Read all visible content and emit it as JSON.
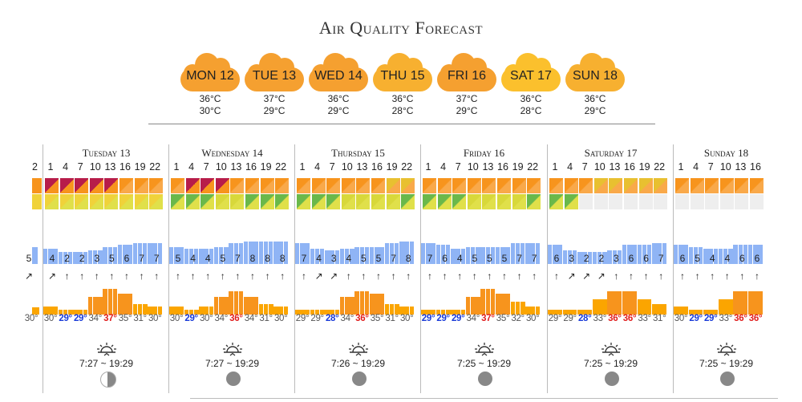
{
  "title": "Air Quality Forecast",
  "days": [
    {
      "label": "MON 12",
      "high": "36°C",
      "low": "30°C",
      "color": "#f5a030"
    },
    {
      "label": "TUE 13",
      "high": "37°C",
      "low": "29°C",
      "color": "#f5a030"
    },
    {
      "label": "WED 14",
      "high": "36°C",
      "low": "29°C",
      "color": "#f5a030"
    },
    {
      "label": "THU 15",
      "high": "36°C",
      "low": "28°C",
      "color": "#f7b030"
    },
    {
      "label": "FRI 16",
      "high": "37°C",
      "low": "29°C",
      "color": "#f5a030"
    },
    {
      "label": "SAT 17",
      "high": "36°C",
      "low": "28°C",
      "color": "#fbc02d"
    },
    {
      "label": "SUN 18",
      "high": "36°C",
      "low": "29°C",
      "color": "#f7b030"
    }
  ],
  "hours": [
    "1",
    "4",
    "7",
    "10",
    "13",
    "16",
    "19",
    "22"
  ],
  "prev_day": {
    "hour": "2",
    "wind": "5",
    "temp": "30°"
  },
  "forecast": [
    {
      "name": "Tuesday 13",
      "aqi": [
        "#b71c4a",
        "#b71c4a",
        "#b71c4a",
        "#b71c4a",
        "#b71c4a",
        "#f7941d",
        "#f7941d",
        "#f7941d"
      ],
      "pm": [
        "#f0d23a",
        "#f0d23a",
        "#f0d23a",
        "#f0d23a",
        "#f0d23a",
        "#f0d23a",
        "#f0d23a",
        "#f0d23a"
      ],
      "wind": [
        "4",
        "2",
        "2",
        "3",
        "5",
        "6",
        "7",
        "7"
      ],
      "arrows": [
        "↗",
        "↑",
        "↑",
        "↑",
        "↑",
        "↑",
        "↑",
        "↑"
      ],
      "temps": [
        "30°",
        "29°",
        "29°",
        "34°",
        "37°",
        "35°",
        "31°",
        "30°"
      ],
      "sunrise": "7:27 ~ 19:29"
    },
    {
      "name": "Wednesday 14",
      "aqi": [
        "#f7941d",
        "#b71c4a",
        "#b71c4a",
        "#b71c4a",
        "#f7941d",
        "#f7941d",
        "#f7941d",
        "#f7941d"
      ],
      "pm": [
        "#6ab84a",
        "#6ab84a",
        "#6ab84a",
        "#d8d83a",
        "#d8d83a",
        "#6ab84a",
        "#6ab84a",
        "#6ab84a"
      ],
      "wind": [
        "5",
        "4",
        "4",
        "5",
        "7",
        "8",
        "8",
        "8"
      ],
      "arrows": [
        "↑",
        "↑",
        "↑",
        "↑",
        "↑",
        "↑",
        "↑",
        "↑"
      ],
      "temps": [
        "30°",
        "29°",
        "30°",
        "34°",
        "36°",
        "34°",
        "31°",
        "30°"
      ],
      "sunrise": "7:27 ~ 19:29"
    },
    {
      "name": "Thursday 15",
      "aqi": [
        "#f7941d",
        "#f7941d",
        "#f7941d",
        "#f7941d",
        "#f7941d",
        "#f7941d",
        "#e8c030",
        "#e8c030"
      ],
      "pm": [
        "#6ab84a",
        "#6ab84a",
        "#6ab84a",
        "#d8d83a",
        "#d8d83a",
        "#d8d83a",
        "#d8d83a",
        "#6ab84a"
      ],
      "wind": [
        "7",
        "4",
        "3",
        "4",
        "5",
        "5",
        "7",
        "8"
      ],
      "arrows": [
        "↑",
        "↗",
        "↗",
        "↑",
        "↑",
        "↑",
        "↑",
        "↑"
      ],
      "temps": [
        "29°",
        "29°",
        "28°",
        "34°",
        "36°",
        "35°",
        "31°",
        "30°"
      ],
      "sunrise": "7:26 ~ 19:29"
    },
    {
      "name": "Friday 16",
      "aqi": [
        "#f7941d",
        "#f7941d",
        "#f7941d",
        "#f7941d",
        "#f7941d",
        "#f7941d",
        "#f7941d",
        "#f7941d"
      ],
      "pm": [
        "#6ab84a",
        "#6ab84a",
        "#6ab84a",
        "#d8d83a",
        "#d8d83a",
        "#d8d83a",
        "#d8d83a",
        "#6ab84a"
      ],
      "wind": [
        "7",
        "6",
        "4",
        "5",
        "5",
        "5",
        "7",
        "7"
      ],
      "arrows": [
        "↑",
        "↑",
        "↑",
        "↑",
        "↑",
        "↑",
        "↑",
        "↑"
      ],
      "temps": [
        "29°",
        "29°",
        "29°",
        "34°",
        "37°",
        "35°",
        "32°",
        "30°"
      ],
      "sunrise": "7:25 ~ 19:29"
    },
    {
      "name": "Saturday 17",
      "aqi": [
        "#f7941d",
        "#f7941d",
        "#f7941d",
        "#e8c030",
        "#e8c030",
        "#e8c030",
        "#e8c030",
        "#e8c030"
      ],
      "pm": [
        "#6ab84a",
        "#6ab84a",
        "#eeeeee",
        "#eeeeee",
        "#eeeeee",
        "#eeeeee",
        "#eeeeee",
        "#eeeeee"
      ],
      "wind": [
        "6",
        "3",
        "2",
        "2",
        "3",
        "6",
        "6",
        "7"
      ],
      "arrows": [
        "↑",
        "↗",
        "↗",
        "↗",
        "↑",
        "↑",
        "↑",
        "↑"
      ],
      "temps": [
        "29°",
        "29°",
        "28°",
        "33°",
        "36°",
        "36°",
        "33°",
        "31°"
      ],
      "sunrise": "7:25 ~ 19:29"
    },
    {
      "name": "Sunday 18",
      "aqi": [
        "#f7941d",
        "#f7941d",
        "#f7941d",
        "#f7941d",
        "#f7941d",
        "#f7941d"
      ],
      "pm": [
        "#eeeeee",
        "#eeeeee",
        "#eeeeee",
        "#eeeeee",
        "#eeeeee",
        "#eeeeee"
      ],
      "wind": [
        "6",
        "5",
        "4",
        "4",
        "6",
        "6"
      ],
      "arrows": [
        "↑",
        "↑",
        "↑",
        "↑",
        "↑",
        "↑"
      ],
      "temps": [
        "30°",
        "29°",
        "29°",
        "33°",
        "36°",
        "36°"
      ],
      "sunrise": "7:25 ~ 19:29",
      "hours": [
        "1",
        "4",
        "7",
        "10",
        "13",
        "16"
      ]
    }
  ],
  "colors": {
    "low_temp": "#1a3bd8",
    "high_temp": "#e02020"
  }
}
